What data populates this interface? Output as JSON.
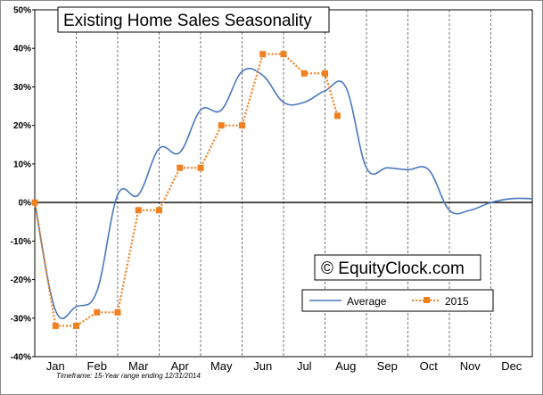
{
  "chart_data": {
    "type": "line",
    "title": "Existing Home Sales Seasonality",
    "watermark": "© EquityClock.com",
    "footnote": "Timeframe: 15-Year range ending 12/31/2014",
    "y_ticks": [
      "50%",
      "40%",
      "30%",
      "20%",
      "10%",
      "0%",
      "-10%",
      "-20%",
      "-30%",
      "-40%"
    ],
    "ylim": [
      -40,
      50
    ],
    "xlim": [
      0,
      12
    ],
    "x_axis": "month of year (0 = start of Jan, 12 = end of Dec)",
    "categories": [
      "Jan",
      "Feb",
      "Mar",
      "Apr",
      "May",
      "Jun",
      "Jul",
      "Aug",
      "Sep",
      "Oct",
      "Nov",
      "Dec"
    ],
    "grid": "vertical dashed lines at month boundaries",
    "legend_position": "bottom-right",
    "series": [
      {
        "name": "Average",
        "color": "#4a78be",
        "style": "solid smooth line",
        "x": [
          0,
          0.5,
          1.0,
          1.5,
          2.0,
          2.5,
          3.0,
          3.5,
          4.0,
          4.5,
          5.0,
          5.5,
          6.0,
          6.5,
          7.0,
          7.5,
          8.0,
          8.5,
          9.0,
          9.5,
          10.0,
          10.5,
          11.0,
          11.5,
          12.0
        ],
        "values": [
          0,
          -28,
          -27,
          -23,
          2,
          2,
          14,
          13,
          24,
          24,
          34,
          33,
          26,
          26,
          29,
          30,
          9,
          9,
          8.5,
          8.5,
          -2,
          -2,
          0,
          1,
          1
        ]
      },
      {
        "name": "2015",
        "color": "#f08020",
        "style": "dotted line with square markers",
        "x": [
          0,
          0.5,
          1.0,
          1.5,
          2.0,
          2.5,
          3.0,
          3.5,
          4.0,
          4.5,
          5.0,
          5.5,
          6.0,
          6.5,
          7.0,
          7.3
        ],
        "values": [
          0,
          -32,
          -32,
          -28.5,
          -28.5,
          -2,
          -2,
          9,
          9,
          20,
          20,
          38.5,
          38.5,
          33.5,
          33.5,
          22.5
        ]
      }
    ]
  }
}
